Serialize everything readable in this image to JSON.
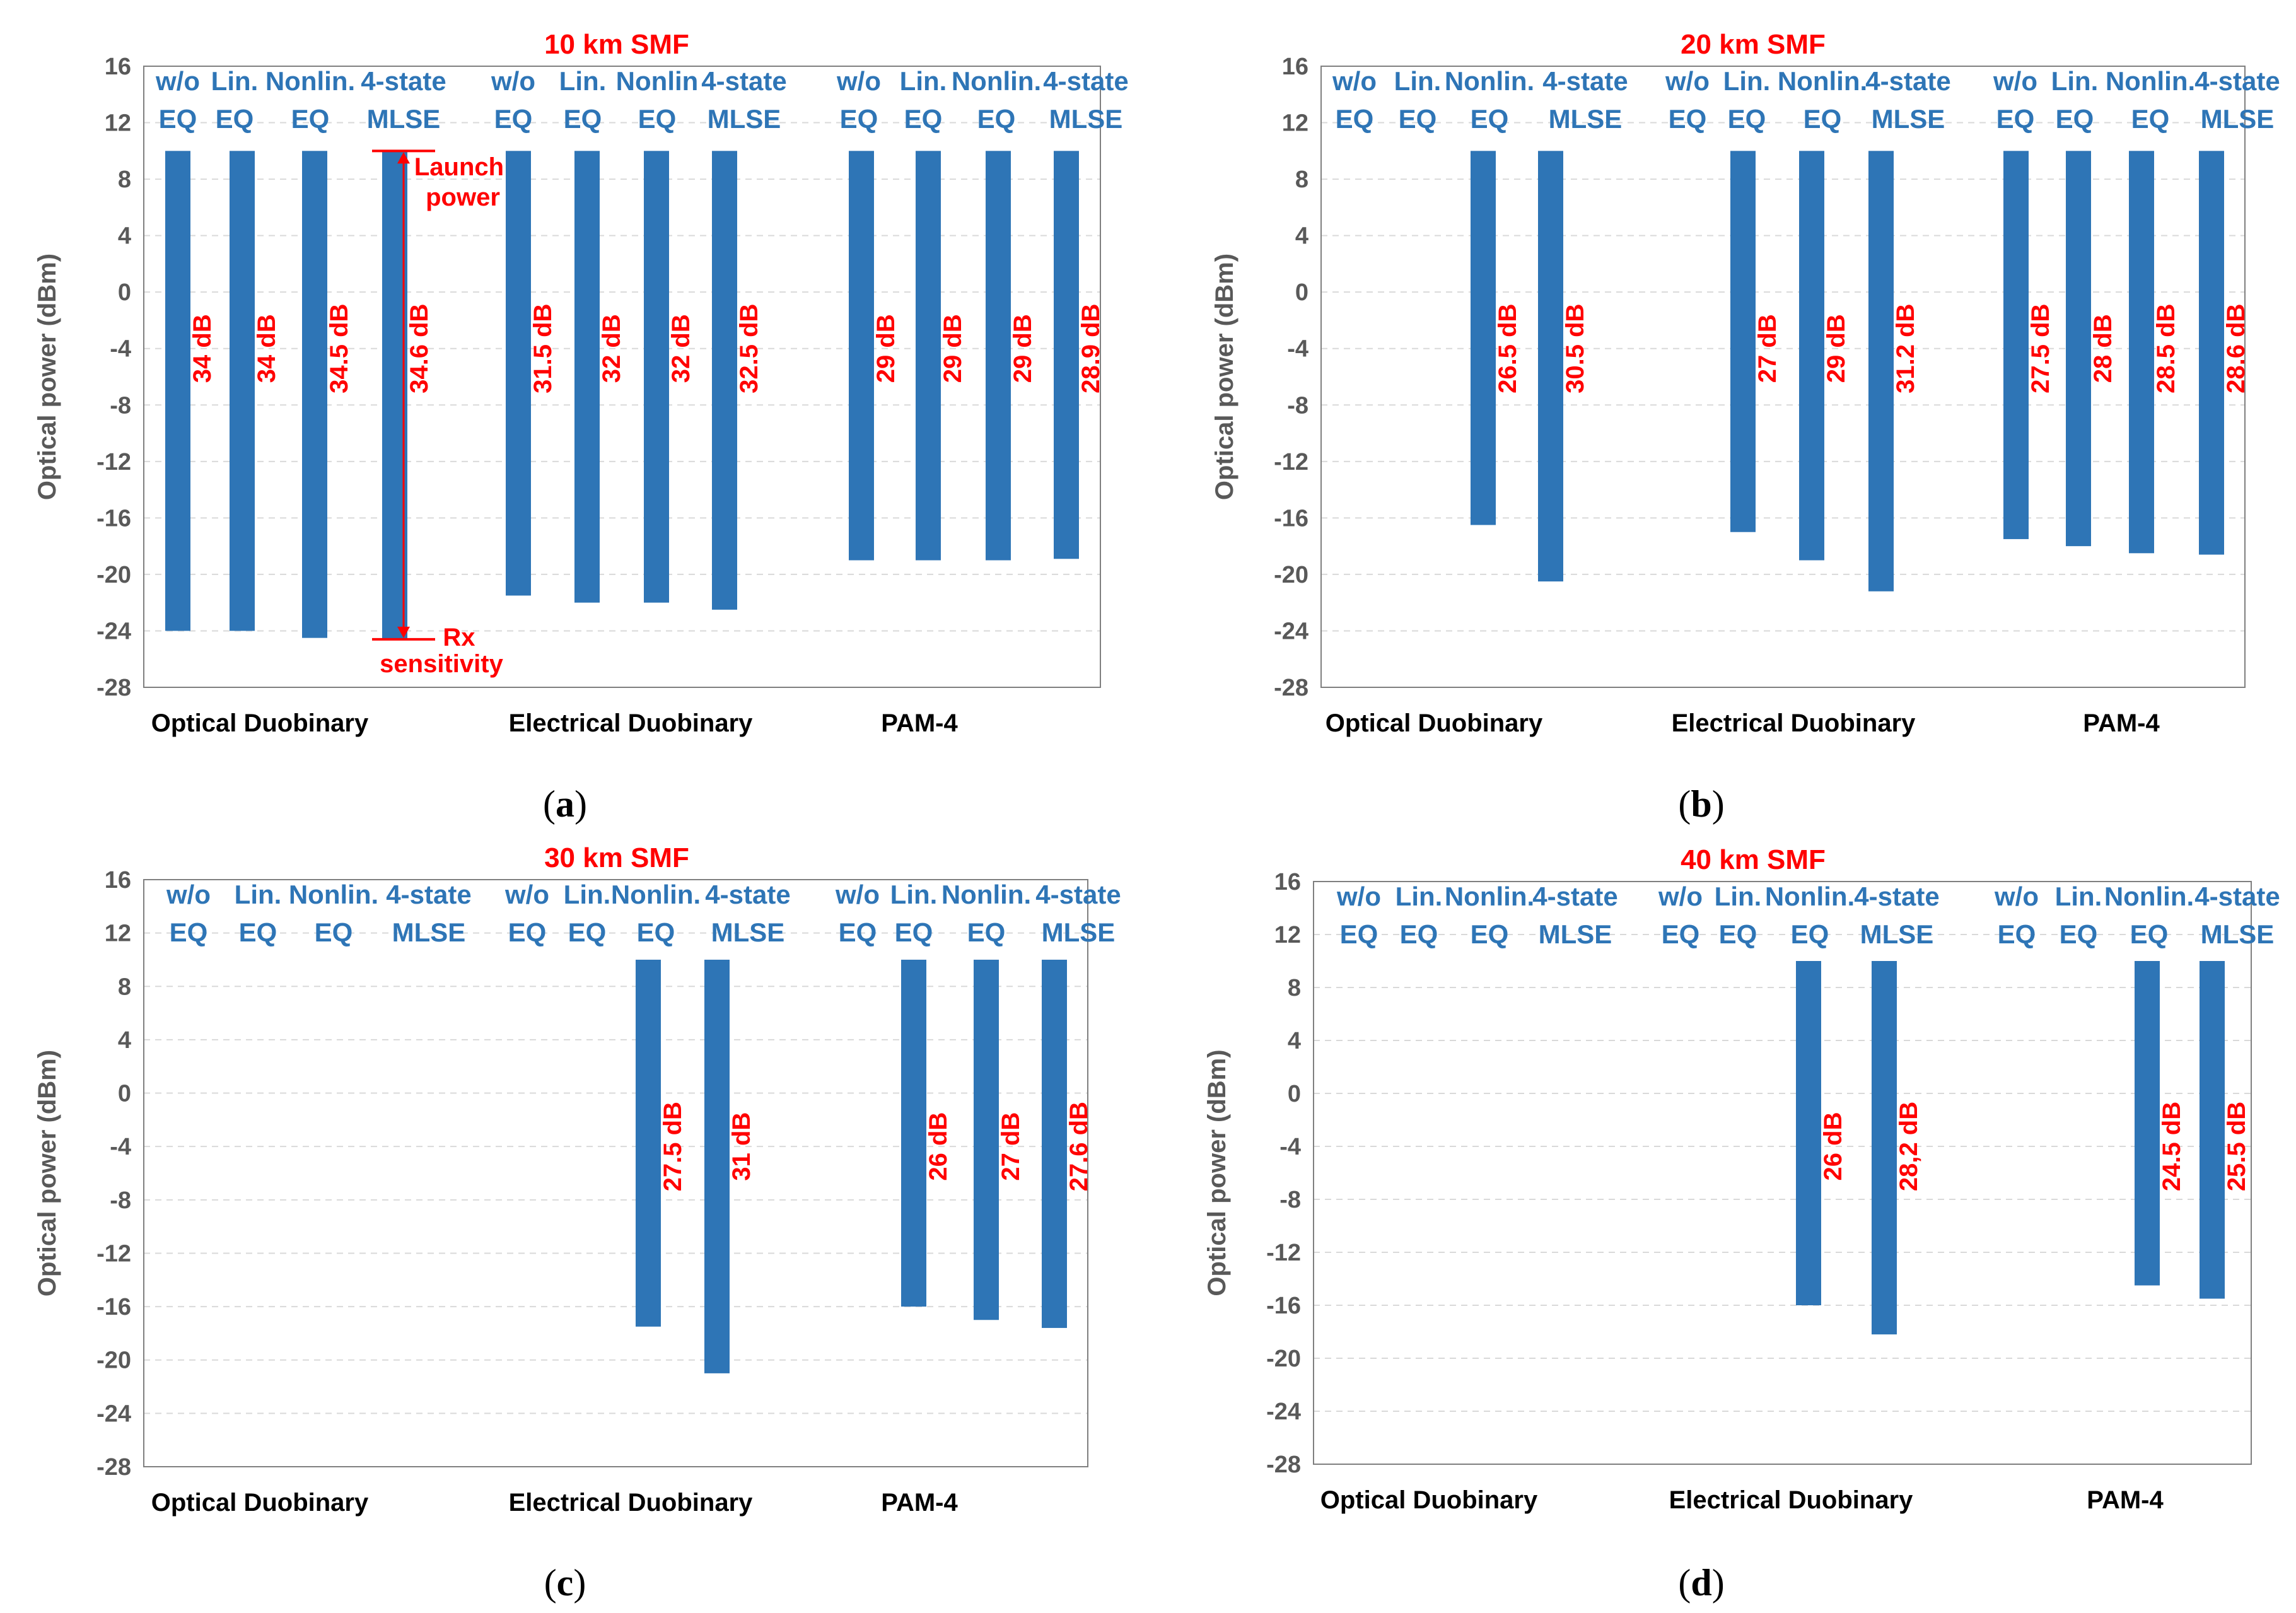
{
  "colors": {
    "bar": "#2e75b6",
    "label": "#ff0000",
    "method_label": "#2e75b6",
    "grid": "#d9d9d9",
    "axis_text": "#595959"
  },
  "chart_data": [
    {
      "type": "bar",
      "title": "10 km SMF",
      "ylabel": "Optical power (dBm)",
      "ylim": [
        -28,
        16
      ],
      "yticks": [
        16,
        12,
        8,
        4,
        0,
        -4,
        -8,
        -12,
        -16,
        -20,
        -24,
        -28
      ],
      "caption_letter": "a",
      "groups": [
        {
          "name": "Optical Duobinary",
          "methods": [
            {
              "top": [
                "w/o"
              ],
              "bottom": "EQ",
              "bar": [
                -24,
                10
              ],
              "label": "34 dB"
            },
            {
              "top": [
                "Lin."
              ],
              "bottom": "EQ",
              "bar": [
                -24,
                10
              ],
              "label": "34 dB"
            },
            {
              "top": [
                "Nonlin."
              ],
              "bottom": "EQ",
              "bar": [
                -24.5,
                10
              ],
              "label": "34.5 dB"
            },
            {
              "top": [
                "4-state"
              ],
              "bottom": "MLSE",
              "bar": [
                -24.6,
                10
              ],
              "label": "34.6 dB"
            }
          ]
        },
        {
          "name": "Electrical Duobinary",
          "methods": [
            {
              "top": [
                "w/o"
              ],
              "bottom": "EQ",
              "bar": [
                -21.5,
                10
              ],
              "label": "31.5 dB"
            },
            {
              "top": [
                "Lin."
              ],
              "bottom": "EQ",
              "bar": [
                -22,
                10
              ],
              "label": "32 dB"
            },
            {
              "top": [
                "Nonlin"
              ],
              "bottom": "EQ",
              "bar": [
                -22,
                10
              ],
              "label": "32 dB"
            },
            {
              "top": [
                "4-state"
              ],
              "bottom": "MLSE",
              "bar": [
                -22.5,
                10
              ],
              "label": "32.5 dB"
            }
          ]
        },
        {
          "name": "PAM-4",
          "methods": [
            {
              "top": [
                "w/o"
              ],
              "bottom": "EQ",
              "bar": [
                -19,
                10
              ],
              "label": "29 dB"
            },
            {
              "top": [
                "Lin."
              ],
              "bottom": "EQ",
              "bar": [
                -19,
                10
              ],
              "label": "29 dB"
            },
            {
              "top": [
                "Nonlin."
              ],
              "bottom": "EQ",
              "bar": [
                -19,
                10
              ],
              "label": "29 dB"
            },
            {
              "top": [
                "4-state"
              ],
              "bottom": "MLSE",
              "bar": [
                -18.9,
                10
              ],
              "label": "28.9 dB"
            }
          ]
        }
      ],
      "annotations": {
        "launch": [
          "Launch",
          "power"
        ],
        "rx": [
          "Rx",
          "sensitivity"
        ]
      }
    },
    {
      "type": "bar",
      "title": "20 km SMF",
      "ylabel": "Optical power (dBm)",
      "ylim": [
        -28,
        16
      ],
      "yticks": [
        16,
        12,
        8,
        4,
        0,
        -4,
        -8,
        -12,
        -16,
        -20,
        -24,
        -28
      ],
      "caption_letter": "b",
      "groups": [
        {
          "name": "Optical Duobinary",
          "methods": [
            {
              "top": [
                "w/o"
              ],
              "bottom": "EQ",
              "bar": null,
              "label": null
            },
            {
              "top": [
                "Lin."
              ],
              "bottom": "EQ",
              "bar": null,
              "label": null
            },
            {
              "top": [
                "Nonlin."
              ],
              "bottom": "EQ",
              "bar": [
                -16.5,
                10
              ],
              "label": "26.5 dB"
            },
            {
              "top": [
                "4-state"
              ],
              "bottom": "MLSE",
              "bar": [
                -20.5,
                10
              ],
              "label": "30.5 dB"
            }
          ]
        },
        {
          "name": "Electrical Duobinary",
          "methods": [
            {
              "top": [
                "w/o"
              ],
              "bottom": "EQ",
              "bar": null,
              "label": null
            },
            {
              "top": [
                "Lin."
              ],
              "bottom": "EQ",
              "bar": [
                -17,
                10
              ],
              "label": "27 dB"
            },
            {
              "top": [
                "Nonlin."
              ],
              "bottom": "EQ",
              "bar": [
                -19,
                10
              ],
              "label": "29 dB"
            },
            {
              "top": [
                "4-state"
              ],
              "bottom": "MLSE",
              "bar": [
                -21.2,
                10
              ],
              "label": "31.2 dB"
            }
          ]
        },
        {
          "name": "PAM-4",
          "methods": [
            {
              "top": [
                "w/o"
              ],
              "bottom": "EQ",
              "bar": [
                -17.5,
                10
              ],
              "label": "27.5 dB"
            },
            {
              "top": [
                "Lin."
              ],
              "bottom": "EQ",
              "bar": [
                -18,
                10
              ],
              "label": "28 dB"
            },
            {
              "top": [
                "Nonlin."
              ],
              "bottom": "EQ",
              "bar": [
                -18.5,
                10
              ],
              "label": "28.5 dB"
            },
            {
              "top": [
                "4-state"
              ],
              "bottom": "MLSE",
              "bar": [
                -18.6,
                10
              ],
              "label": "28.6 dB"
            }
          ]
        }
      ]
    },
    {
      "type": "bar",
      "title": "30 km SMF",
      "ylabel": "Optical power (dBm)",
      "ylim": [
        -28,
        16
      ],
      "yticks": [
        16,
        12,
        8,
        4,
        0,
        -4,
        -8,
        -12,
        -16,
        -20,
        -24,
        -28
      ],
      "caption_letter": "c",
      "groups": [
        {
          "name": "Optical Duobinary",
          "methods": [
            {
              "top": [
                "w/o"
              ],
              "bottom": "EQ",
              "bar": null,
              "label": null
            },
            {
              "top": [
                "Lin."
              ],
              "bottom": "EQ",
              "bar": null,
              "label": null
            },
            {
              "top": [
                "Nonlin."
              ],
              "bottom": "EQ",
              "bar": null,
              "label": null
            },
            {
              "top": [
                "4-state"
              ],
              "bottom": "MLSE",
              "bar": null,
              "label": null
            }
          ]
        },
        {
          "name": "Electrical Duobinary",
          "methods": [
            {
              "top": [
                "w/o"
              ],
              "bottom": "EQ",
              "bar": null,
              "label": null
            },
            {
              "top": [
                "Lin."
              ],
              "bottom": "EQ",
              "bar": null,
              "label": null
            },
            {
              "top": [
                "Nonlin."
              ],
              "bottom": "EQ",
              "bar": [
                -17.5,
                10
              ],
              "label": "27.5 dB"
            },
            {
              "top": [
                "4-state"
              ],
              "bottom": "MLSE",
              "bar": [
                -21,
                10
              ],
              "label": "31 dB"
            }
          ]
        },
        {
          "name": "PAM-4",
          "methods": [
            {
              "top": [
                "w/o"
              ],
              "bottom": "EQ",
              "bar": null,
              "label": null
            },
            {
              "top": [
                "Lin."
              ],
              "bottom": "EQ",
              "bar": [
                -16,
                10
              ],
              "label": "26 dB"
            },
            {
              "top": [
                "Nonlin."
              ],
              "bottom": "EQ",
              "bar": [
                -17,
                10
              ],
              "label": "27 dB"
            },
            {
              "top": [
                "4-state"
              ],
              "bottom": "MLSE",
              "bar": [
                -17.6,
                10
              ],
              "label": "27.6 dB"
            }
          ]
        }
      ]
    },
    {
      "type": "bar",
      "title": "40 km SMF",
      "ylabel": "Optical power (dBm)",
      "ylim": [
        -28,
        16
      ],
      "yticks": [
        16,
        12,
        8,
        4,
        0,
        -4,
        -8,
        -12,
        -16,
        -20,
        -24,
        -28
      ],
      "caption_letter": "d",
      "groups": [
        {
          "name": "Optical Duobinary",
          "methods": [
            {
              "top": [
                "w/o"
              ],
              "bottom": "EQ",
              "bar": null,
              "label": null
            },
            {
              "top": [
                "Lin."
              ],
              "bottom": "EQ",
              "bar": null,
              "label": null
            },
            {
              "top": [
                "Nonlin."
              ],
              "bottom": "EQ",
              "bar": null,
              "label": null
            },
            {
              "top": [
                "4-state"
              ],
              "bottom": "MLSE",
              "bar": null,
              "label": null
            }
          ]
        },
        {
          "name": "Electrical Duobinary",
          "methods": [
            {
              "top": [
                "w/o"
              ],
              "bottom": "EQ",
              "bar": null,
              "label": null
            },
            {
              "top": [
                "Lin."
              ],
              "bottom": "EQ",
              "bar": null,
              "label": null
            },
            {
              "top": [
                "Nonlin."
              ],
              "bottom": "EQ",
              "bar": [
                -16,
                10
              ],
              "label": "26 dB"
            },
            {
              "top": [
                "4-state"
              ],
              "bottom": "MLSE",
              "bar": [
                -18.2,
                10
              ],
              "label": "28,2 dB"
            }
          ]
        },
        {
          "name": "PAM-4",
          "methods": [
            {
              "top": [
                "w/o"
              ],
              "bottom": "EQ",
              "bar": null,
              "label": null
            },
            {
              "top": [
                "Lin."
              ],
              "bottom": "EQ",
              "bar": null,
              "label": null
            },
            {
              "top": [
                "Nonlin."
              ],
              "bottom": "EQ",
              "bar": [
                -14.5,
                10
              ],
              "label": "24.5 dB"
            },
            {
              "top": [
                "4-state"
              ],
              "bottom": "MLSE",
              "bar": [
                -15.5,
                10
              ],
              "label": "25.5 dB"
            }
          ]
        }
      ]
    }
  ]
}
